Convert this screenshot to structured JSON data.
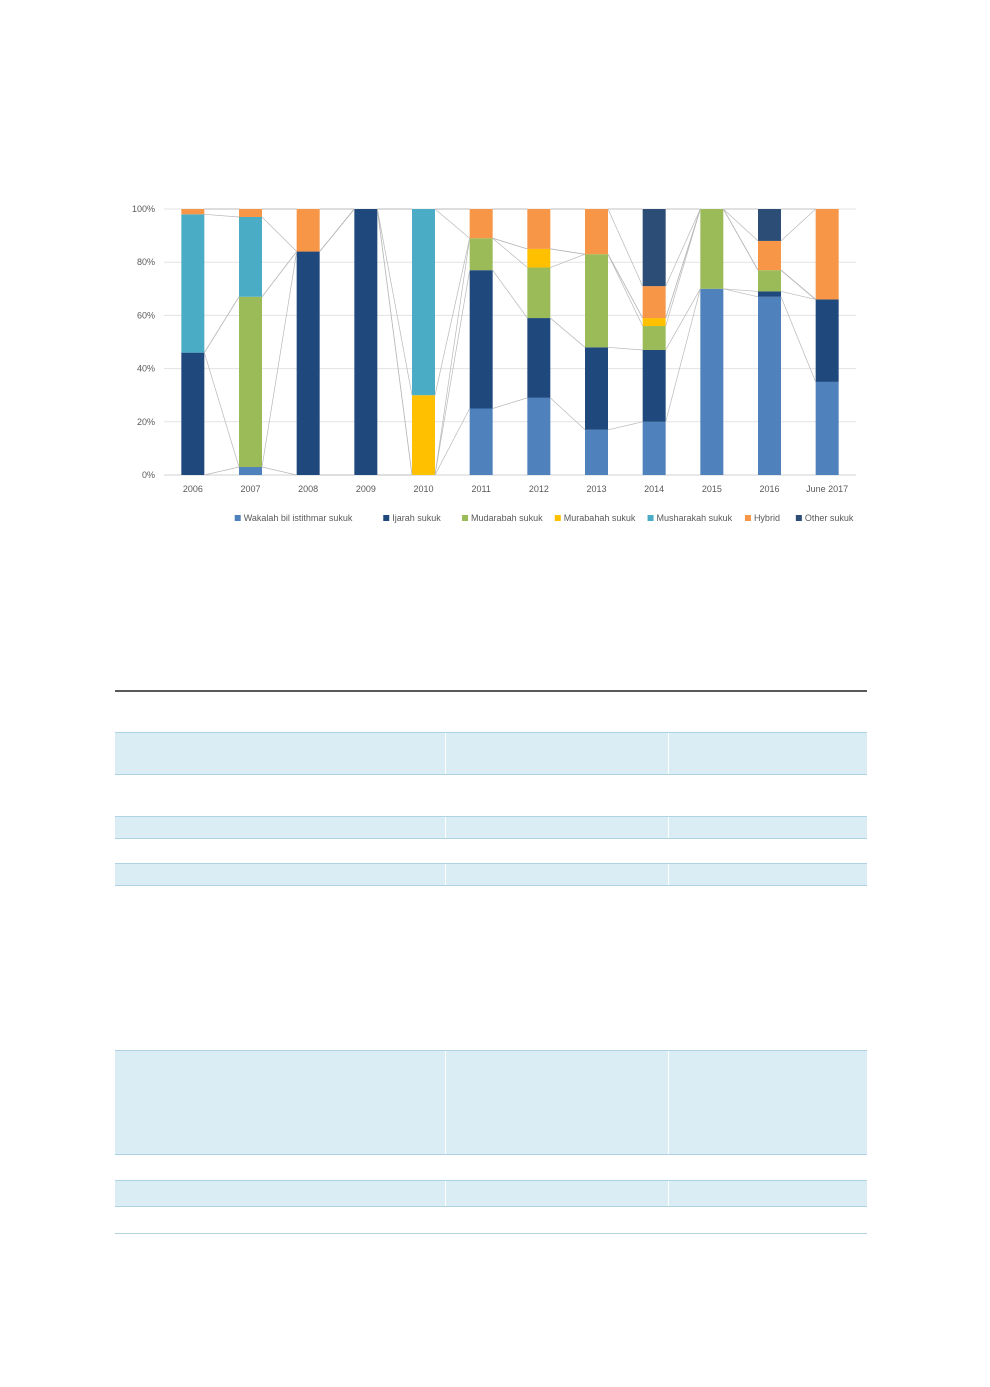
{
  "chart_data": {
    "type": "bar",
    "stacked": true,
    "percent": true,
    "categories": [
      "2006",
      "2007",
      "2008",
      "2009",
      "2010",
      "2011",
      "2012",
      "2013",
      "2014",
      "2015",
      "2016",
      "June 2017"
    ],
    "y_ticks": [
      "0%",
      "20%",
      "40%",
      "60%",
      "80%",
      "100%"
    ],
    "ylim": [
      0,
      100
    ],
    "grid": true,
    "legend_position": "bottom",
    "series": [
      {
        "name": "Wakalah bil istithmar sukuk",
        "color": "#4f81bd",
        "values": [
          0,
          3,
          0,
          0,
          0,
          25,
          29,
          17,
          20,
          70,
          67,
          35
        ]
      },
      {
        "name": "Ijarah sukuk",
        "color": "#1f497d",
        "values": [
          46,
          0,
          84,
          100,
          0,
          52,
          30,
          31,
          27,
          0,
          2,
          31
        ]
      },
      {
        "name": "Mudarabah sukuk",
        "color": "#9bbb59",
        "values": [
          0,
          64,
          0,
          0,
          0,
          12,
          19,
          35,
          9,
          30,
          8,
          0
        ]
      },
      {
        "name": "Murabahah sukuk",
        "color": "#ffc000",
        "values": [
          0,
          0,
          0,
          0,
          30,
          0,
          7,
          0,
          3,
          0,
          0,
          0
        ]
      },
      {
        "name": "Musharakah sukuk",
        "color": "#4bacc6",
        "values": [
          52,
          30,
          0,
          0,
          70,
          0,
          0,
          0,
          0,
          0,
          0,
          0
        ]
      },
      {
        "name": "Hybrid",
        "color": "#f79646",
        "values": [
          2,
          3,
          16,
          0,
          0,
          11,
          15,
          17,
          12,
          0,
          11,
          34
        ]
      },
      {
        "name": "Other sukuk",
        "color": "#2c4d75",
        "values": [
          0,
          0,
          0,
          0,
          0,
          0,
          0,
          0,
          29,
          0,
          12,
          0
        ]
      }
    ]
  },
  "table": {
    "rows": [
      {
        "shaded": false,
        "text": ""
      },
      {
        "shaded": true,
        "text": ""
      },
      {
        "shaded": false,
        "text": ""
      },
      {
        "shaded": true,
        "text": ""
      },
      {
        "shaded": false,
        "text": ""
      },
      {
        "shaded": true,
        "text": ""
      },
      {
        "shaded": false,
        "text": ""
      },
      {
        "shaded": true,
        "text": ""
      },
      {
        "shaded": false,
        "text": ""
      },
      {
        "shaded": true,
        "text": ""
      },
      {
        "shaded": false,
        "text": ""
      }
    ]
  }
}
